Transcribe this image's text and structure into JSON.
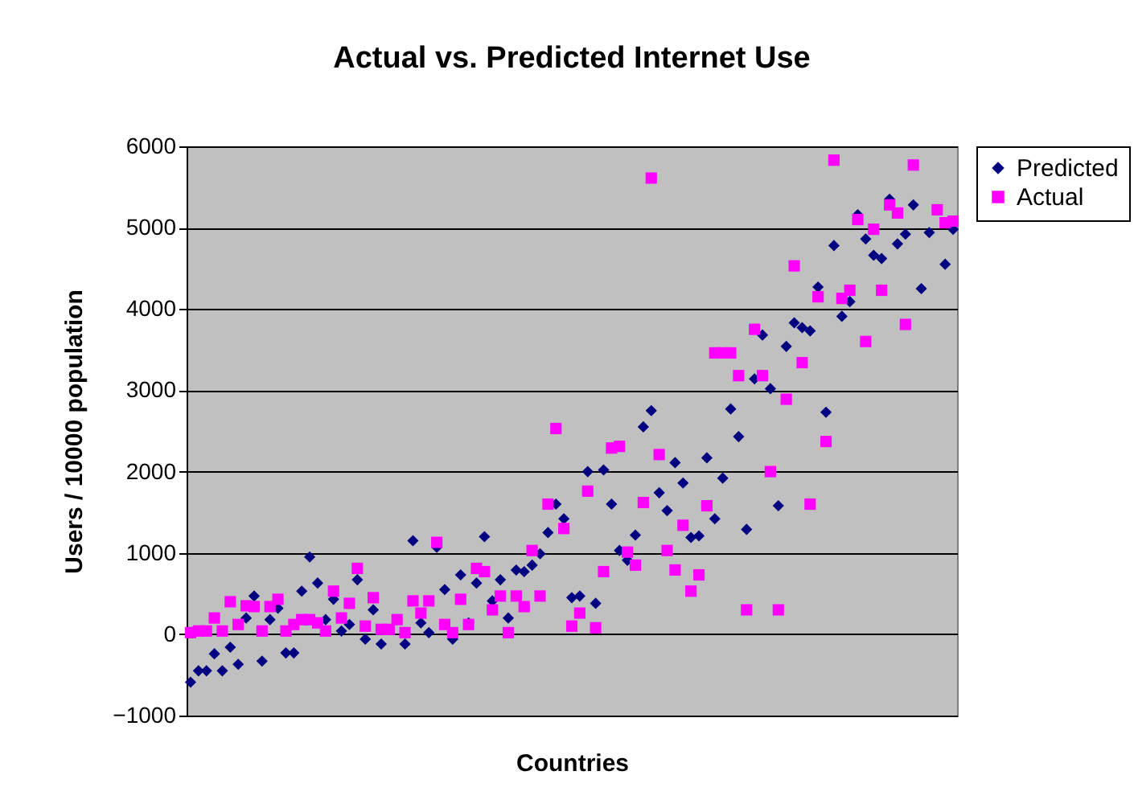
{
  "chart_data": {
    "type": "scatter",
    "title": "Actual vs. Predicted Internet Use",
    "xlabel": "Countries",
    "ylabel": "Users / 10000 population",
    "categories": [
      null,
      null,
      null,
      null,
      null,
      null,
      null,
      null,
      null,
      null,
      null,
      null,
      null,
      null,
      null,
      null,
      null,
      null,
      null,
      null,
      null,
      null,
      null,
      null,
      null,
      null,
      null,
      null,
      null,
      null,
      null,
      null,
      null,
      null,
      null,
      null,
      null,
      null,
      null,
      null,
      null,
      null,
      null,
      null,
      null,
      null,
      null,
      null,
      null,
      null,
      null,
      null,
      null,
      null,
      null,
      null,
      null,
      null,
      null,
      null,
      null,
      null,
      null,
      null,
      null,
      null,
      null,
      null,
      null,
      null,
      null,
      null,
      null,
      null,
      null,
      null,
      null,
      null,
      null,
      null,
      null,
      null,
      null,
      null,
      null,
      null,
      null,
      null,
      null,
      null,
      null,
      null,
      null,
      null,
      null,
      null,
      null
    ],
    "series": [
      {
        "name": "Predicted",
        "color": "#000080",
        "marker": "diamond",
        "values": [
          -590,
          -450,
          -450,
          -240,
          -450,
          -160,
          -370,
          200,
          470,
          -330,
          180,
          320,
          -230,
          -230,
          530,
          950,
          630,
          180,
          430,
          40,
          120,
          670,
          -60,
          300,
          -120,
          null,
          null,
          -120,
          1150,
          140,
          20,
          1070,
          550,
          -60,
          730,
          140,
          630,
          1200,
          410,
          670,
          200,
          790,
          770,
          850,
          990,
          1250,
          1600,
          1420,
          450,
          470,
          2000,
          380,
          2020,
          1600,
          1030,
          910,
          1220,
          2550,
          2750,
          1740,
          1520,
          2110,
          1860,
          1190,
          1210,
          2170,
          1420,
          1920,
          2770,
          2430,
          1290,
          3140,
          3680,
          3020,
          1580,
          3540,
          3830,
          3770,
          3730,
          4270,
          2730,
          4780,
          3910,
          4090,
          5160,
          4860,
          4660,
          4620,
          5350,
          4800,
          4920,
          5280,
          4250,
          4940,
          null,
          4550,
          4980
        ]
      },
      {
        "name": "Actual",
        "color": "#ff00ff",
        "marker": "square",
        "values": [
          20,
          40,
          40,
          200,
          40,
          400,
          120,
          350,
          340,
          40,
          340,
          430,
          40,
          120,
          180,
          180,
          140,
          40,
          530,
          200,
          380,
          810,
          100,
          450,
          60,
          60,
          180,
          20,
          410,
          260,
          410,
          1130,
          120,
          20,
          430,
          120,
          810,
          770,
          300,
          470,
          20,
          470,
          340,
          1030,
          470,
          1600,
          2530,
          1300,
          100,
          260,
          1760,
          80,
          770,
          2290,
          2310,
          1010,
          850,
          1620,
          5610,
          2210,
          1030,
          790,
          1340,
          530,
          730,
          1580,
          3460,
          3460,
          3460,
          3180,
          300,
          3750,
          3180,
          2000,
          300,
          2890,
          4530,
          3340,
          1600,
          4150,
          2370,
          5830,
          4130,
          4230,
          5100,
          3600,
          4980,
          4230,
          5280,
          5180,
          3810,
          5770,
          null,
          null,
          5220,
          5060,
          5080
        ]
      }
    ],
    "ylim": [
      -1000,
      6000
    ],
    "yticks": [
      -1000,
      0,
      1000,
      2000,
      3000,
      4000,
      5000,
      6000
    ],
    "grid": "y",
    "legend": "right"
  }
}
